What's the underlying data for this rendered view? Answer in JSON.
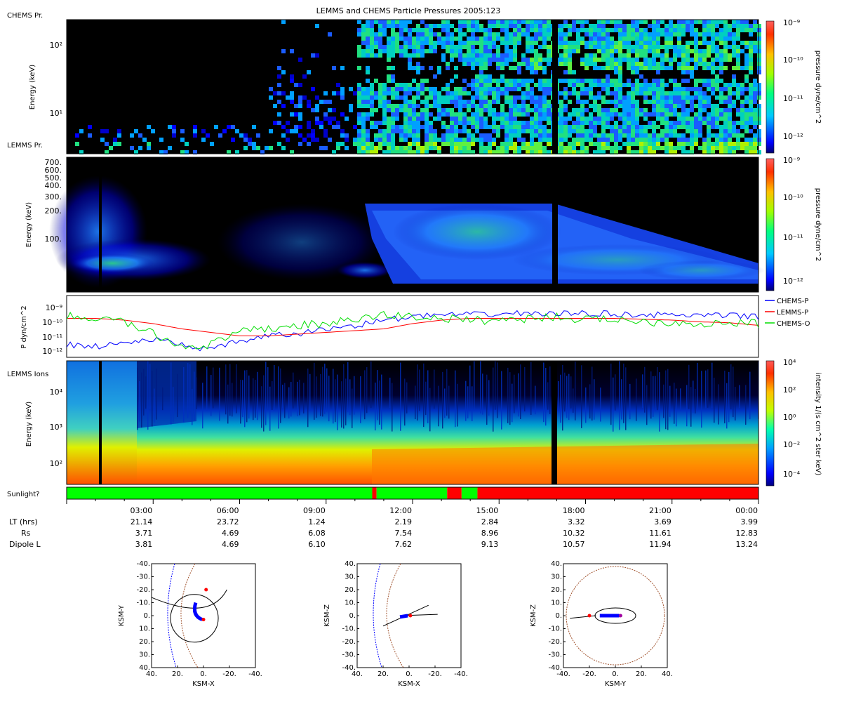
{
  "title": "LEMMS and CHEMS Particle Pressures  2005:123",
  "panels": {
    "chems_pr": {
      "label": "CHEMS Pr.",
      "ylabel": "Energy (keV)",
      "yticks": [
        "10²",
        "10¹"
      ],
      "colorbar_label": "pressure dyne/cm^2",
      "colorbar_ticks": [
        "10⁻⁹",
        "10⁻¹⁰",
        "10⁻¹¹",
        "10⁻¹²"
      ]
    },
    "lemms_pr": {
      "label": "LEMMS Pr.",
      "ylabel": "Energy (keV)",
      "yticks": [
        "700.",
        "600.",
        "500.",
        "400.",
        "300.",
        "200.",
        "100."
      ],
      "colorbar_label": "pressure dyne/cm^2",
      "colorbar_ticks": [
        "10⁻⁹",
        "10⁻¹⁰",
        "10⁻¹¹",
        "10⁻¹²"
      ]
    },
    "pressure_lines": {
      "ylabel": "P dyn/cm^2",
      "yticks": [
        "10⁻⁹",
        "10⁻¹⁰",
        "10⁻¹¹",
        "10⁻¹²"
      ],
      "legend": [
        {
          "name": "CHEMS-P",
          "color": "#0000ff"
        },
        {
          "name": "LEMMS-P",
          "color": "#ff0000"
        },
        {
          "name": "CHEMS-O",
          "color": "#00dd00"
        }
      ]
    },
    "lemms_ions": {
      "label": "LEMMS Ions",
      "ylabel": "Energy (keV)",
      "yticks": [
        "10⁴",
        "10³",
        "10²"
      ],
      "colorbar_label": "intensity 1/(s cm^2 ster keV)",
      "colorbar_ticks": [
        "10⁴",
        "10²",
        "10⁰",
        "10⁻²",
        "10⁻⁴"
      ]
    },
    "sunlight": {
      "label": "Sunlight?",
      "segments_hours": [
        {
          "start": 0.0,
          "end": 10.6,
          "state": "sun"
        },
        {
          "start": 10.6,
          "end": 10.75,
          "state": "shadow"
        },
        {
          "start": 10.75,
          "end": 13.2,
          "state": "sun"
        },
        {
          "start": 13.2,
          "end": 13.7,
          "state": "shadow"
        },
        {
          "start": 13.7,
          "end": 14.25,
          "state": "sun"
        },
        {
          "start": 14.25,
          "end": 24.0,
          "state": "shadow"
        }
      ],
      "colors": {
        "sun": "#00ff00",
        "shadow": "#ff0000"
      }
    }
  },
  "x_axis": {
    "ticks": [
      "03:00",
      "06:00",
      "09:00",
      "12:00",
      "15:00",
      "18:00",
      "21:00",
      "00:00"
    ],
    "tick_hours": [
      3,
      6,
      9,
      12,
      15,
      18,
      21,
      24
    ],
    "rows": [
      {
        "label": "LT (hrs)",
        "values": [
          "21.14",
          "23.72",
          "1.24",
          "2.19",
          "2.84",
          "3.32",
          "3.69",
          "3.99"
        ]
      },
      {
        "label": "Rs",
        "values": [
          "3.71",
          "4.69",
          "6.08",
          "7.54",
          "8.96",
          "10.32",
          "11.61",
          "12.83"
        ]
      },
      {
        "label": "Dipole L",
        "values": [
          "3.81",
          "4.69",
          "6.10",
          "7.62",
          "9.13",
          "10.57",
          "11.94",
          "13.24"
        ]
      }
    ]
  },
  "orbits": [
    {
      "xlabel": "KSM-X",
      "ylabel": "KSM-Y",
      "xticks": [
        "40.",
        "20.",
        "0.",
        "-20.",
        "-40."
      ],
      "yticks": [
        "-40.",
        "-30.",
        "-20.",
        "-10.",
        "0.",
        "10.",
        "20.",
        "30.",
        "40."
      ]
    },
    {
      "xlabel": "KSM-X",
      "ylabel": "KSM-Z",
      "xticks": [
        "40.",
        "20.",
        "0.",
        "-20.",
        "-40."
      ],
      "yticks": [
        "40.",
        "30.",
        "20.",
        "10.",
        "0.",
        "-10.",
        "-20.",
        "-30.",
        "-40."
      ]
    },
    {
      "xlabel": "KSM-Y",
      "ylabel": "KSM-Z",
      "xticks": [
        "-40.",
        "-20.",
        "0.",
        "20.",
        "40."
      ],
      "yticks": [
        "40.",
        "30.",
        "20.",
        "10.",
        "0.",
        "-10.",
        "-20.",
        "-30.",
        "-40."
      ]
    }
  ],
  "chart_data": [
    {
      "type": "heatmap",
      "title": "LEMMS and CHEMS Particle Pressures  2005:123",
      "panel": "CHEMS Pr.",
      "ylabel": "Energy (keV)",
      "ylim_keV": [
        3,
        300
      ],
      "yscale": "log",
      "zlabel": "pressure dyne/cm^2",
      "zlim": [
        "1e-12",
        "1e-9"
      ],
      "x_hours": [
        0,
        24
      ]
    },
    {
      "type": "heatmap",
      "panel": "LEMMS Pr.",
      "ylabel": "Energy (keV)",
      "ylim_keV": [
        25,
        750
      ],
      "zlabel": "pressure dyne/cm^2",
      "zlim": [
        "1e-12",
        "1e-9"
      ],
      "x_hours": [
        0,
        24
      ]
    },
    {
      "type": "line",
      "ylabel": "P dyn/cm^2",
      "yscale": "log",
      "ylim": [
        "6e-13",
        "2e-9"
      ],
      "x_hours": [
        0,
        1,
        2,
        3,
        4,
        5,
        6,
        7,
        8,
        9,
        10,
        11,
        12,
        13,
        14,
        15,
        16,
        17,
        18,
        19,
        20,
        21,
        22,
        23,
        24
      ],
      "series": [
        {
          "name": "CHEMS-P",
          "log10_values": [
            -11.5,
            -11.6,
            -11.4,
            -11.2,
            -11.5,
            -11.8,
            -11.3,
            -11.0,
            -10.9,
            -10.6,
            -10.4,
            -10.1,
            -9.9,
            -9.8,
            -9.8,
            -9.75,
            -9.7,
            -9.75,
            -9.7,
            -9.75,
            -9.8,
            -9.8,
            -9.85,
            -9.85,
            -9.9
          ]
        },
        {
          "name": "LEMMS-P",
          "log10_values": [
            -10.0,
            -10.0,
            -10.1,
            -10.3,
            -10.6,
            -10.8,
            -11.0,
            -11.0,
            -10.9,
            -10.8,
            -10.7,
            -10.6,
            -10.3,
            -10.1,
            -10.0,
            -10.0,
            -10.0,
            -10.0,
            -10.0,
            -10.0,
            -10.05,
            -10.1,
            -10.2,
            -10.25,
            -10.4
          ]
        },
        {
          "name": "CHEMS-O",
          "log10_values": [
            -9.9,
            -10.0,
            -10.2,
            -10.9,
            -11.6,
            -11.5,
            -10.8,
            -10.6,
            -10.4,
            -10.3,
            -10.1,
            -9.8,
            -9.9,
            -10.0,
            -10.1,
            -10.1,
            -10.0,
            -9.9,
            -10.1,
            -10.0,
            -10.2,
            -10.2,
            -10.3,
            -10.3,
            -10.3
          ]
        }
      ]
    },
    {
      "type": "heatmap",
      "panel": "LEMMS Ions",
      "ylabel": "Energy (keV)",
      "ylim_keV": [
        25,
        50000
      ],
      "yscale": "log",
      "zlabel": "intensity 1/(s cm^2 ster keV)",
      "zlim": [
        "1e-5",
        "1e4"
      ],
      "x_hours": [
        0,
        24
      ]
    }
  ]
}
